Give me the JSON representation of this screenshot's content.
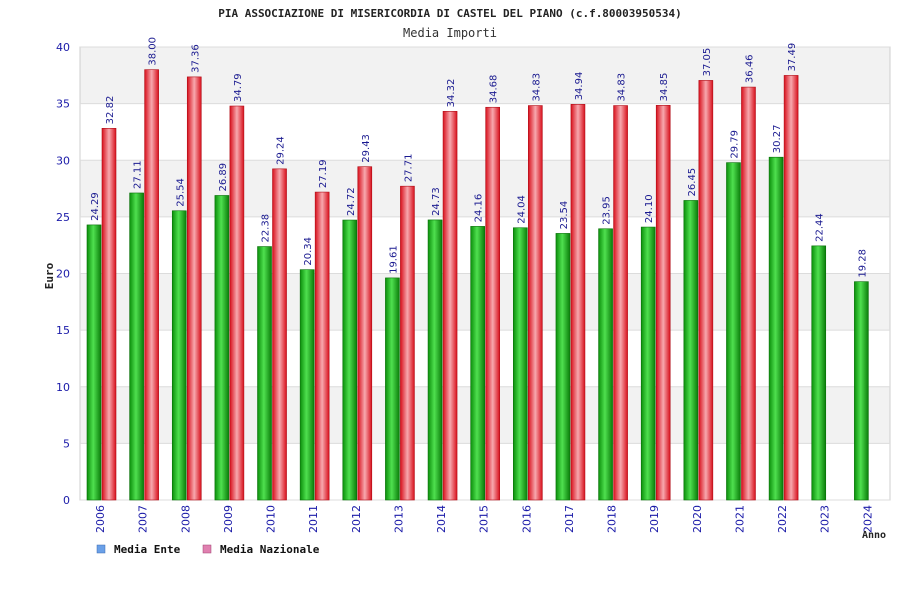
{
  "chart_data": {
    "type": "bar",
    "title": "PIA ASSOCIAZIONE DI MISERICORDIA DI CASTEL DEL PIANO (c.f.80003950534)",
    "subtitle": "Media Importi",
    "ylabel": "Euro",
    "xlabel": "Anno",
    "ylim": [
      0,
      40
    ],
    "yticks": [
      "0",
      "5",
      "10",
      "15",
      "20",
      "25",
      "30",
      "35",
      "40"
    ],
    "categories": [
      "2006",
      "2007",
      "2008",
      "2009",
      "2010",
      "2011",
      "2012",
      "2013",
      "2014",
      "2015",
      "2016",
      "2017",
      "2018",
      "2019",
      "2020",
      "2021",
      "2022",
      "2023",
      "2024"
    ],
    "series": [
      {
        "name": "Media Ente",
        "color": "#0a9a0a",
        "values": [
          24.29,
          27.11,
          25.54,
          26.89,
          22.38,
          20.34,
          24.72,
          19.61,
          24.73,
          24.16,
          24.04,
          23.54,
          23.95,
          24.1,
          26.45,
          29.79,
          30.27,
          22.44,
          19.28
        ],
        "labels": [
          "24.29",
          "27.11",
          "25.54",
          "26.89",
          "22.38",
          "20.34",
          "24.72",
          "19.61",
          "24.73",
          "24.16",
          "24.04",
          "23.54",
          "23.95",
          "24.10",
          "26.45",
          "29.79",
          "30.27",
          "22.44",
          "19.28"
        ]
      },
      {
        "name": "Media Nazionale",
        "color": "#e8202a",
        "values": [
          32.82,
          38.0,
          37.36,
          34.79,
          29.24,
          27.19,
          29.43,
          27.71,
          34.32,
          34.68,
          34.83,
          34.94,
          34.83,
          34.85,
          37.05,
          36.46,
          37.49,
          null,
          null
        ],
        "labels": [
          "32.82",
          "38.00",
          "37.36",
          "34.79",
          "29.24",
          "27.19",
          "29.43",
          "27.71",
          "34.32",
          "34.68",
          "34.83",
          "34.94",
          "34.83",
          "34.85",
          "37.05",
          "36.46",
          "37.49",
          null,
          null
        ]
      }
    ],
    "legend": {
      "placement": "bottom-left",
      "items": [
        {
          "label": "Media Ente",
          "swatch": "#6aa0e8"
        },
        {
          "label": "Media Nazionale",
          "swatch": "#e080b0"
        }
      ]
    },
    "grid": true
  }
}
